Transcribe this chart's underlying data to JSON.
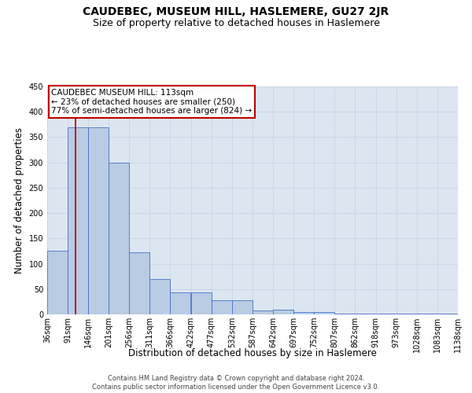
{
  "title": "CAUDEBEC, MUSEUM HILL, HASLEMERE, GU27 2JR",
  "subtitle": "Size of property relative to detached houses in Haslemere",
  "xlabel": "Distribution of detached houses by size in Haslemere",
  "ylabel": "Number of detached properties",
  "bar_values": [
    125,
    370,
    370,
    300,
    122,
    70,
    43,
    43,
    28,
    28,
    8,
    10,
    5,
    5,
    1,
    2,
    1,
    2,
    1,
    2
  ],
  "bin_edges": [
    36,
    91,
    146,
    201,
    256,
    311,
    366,
    422,
    477,
    532,
    587,
    642,
    697,
    752,
    807,
    862,
    918,
    973,
    1028,
    1083,
    1138
  ],
  "x_tick_labels": [
    "36sqm",
    "91sqm",
    "146sqm",
    "201sqm",
    "256sqm",
    "311sqm",
    "366sqm",
    "422sqm",
    "477sqm",
    "532sqm",
    "587sqm",
    "642sqm",
    "697sqm",
    "752sqm",
    "807sqm",
    "862sqm",
    "918sqm",
    "973sqm",
    "1028sqm",
    "1083sqm",
    "1138sqm"
  ],
  "bar_color": "#b8cce4",
  "bar_edge_color": "#4472c4",
  "property_line_x": 113,
  "property_line_color": "#c00000",
  "annotation_text": "CAUDEBEC MUSEUM HILL: 113sqm\n← 23% of detached houses are smaller (250)\n77% of semi-detached houses are larger (824) →",
  "annotation_box_color": "#ffffff",
  "annotation_box_edge_color": "#c00000",
  "ylim": [
    0,
    450
  ],
  "yticks": [
    0,
    50,
    100,
    150,
    200,
    250,
    300,
    350,
    400,
    450
  ],
  "grid_color": "#ccd6e8",
  "bg_color": "#dce6f1",
  "footer_text": "Contains HM Land Registry data © Crown copyright and database right 2024.\nContains public sector information licensed under the Open Government Licence v3.0.",
  "title_fontsize": 10,
  "subtitle_fontsize": 9,
  "ylabel_fontsize": 8.5,
  "xlabel_fontsize": 8.5,
  "tick_fontsize": 7,
  "footer_fontsize": 6
}
